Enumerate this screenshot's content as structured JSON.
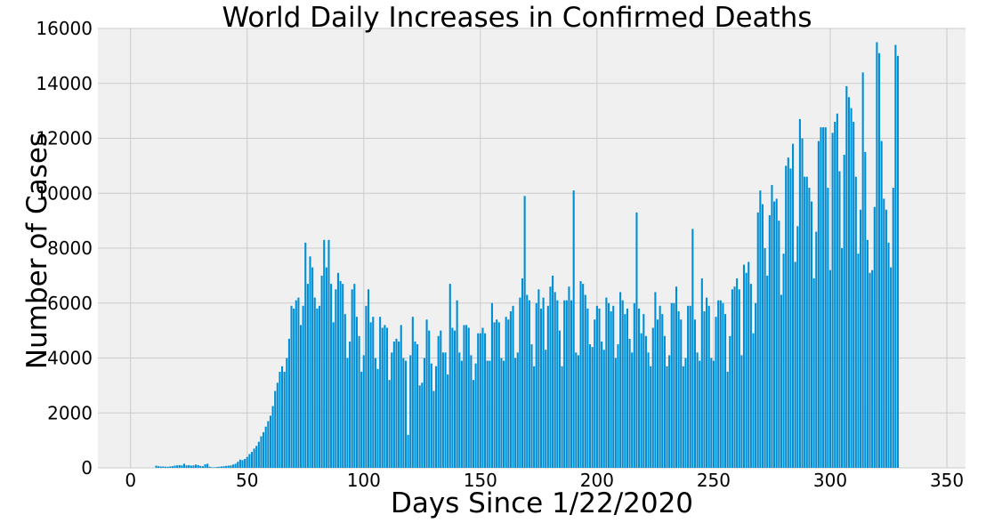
{
  "chart_data": {
    "type": "bar",
    "title": "World Daily Increases in Confirmed Deaths",
    "xlabel": "Days Since 1/22/2020",
    "ylabel": "Number of Cases",
    "xlim": [
      -14,
      358
    ],
    "ylim": [
      0,
      16000
    ],
    "xticks": [
      0,
      50,
      100,
      150,
      200,
      250,
      300,
      350
    ],
    "yticks": [
      0,
      2000,
      4000,
      6000,
      8000,
      10000,
      12000,
      14000,
      16000
    ],
    "grid": true,
    "bar_color": "#008fd5",
    "background_color": "#f0f0f0",
    "x_start": 0,
    "values": [
      0,
      0,
      0,
      0,
      0,
      0,
      0,
      0,
      0,
      0,
      0,
      80,
      60,
      50,
      50,
      40,
      40,
      50,
      60,
      80,
      90,
      100,
      90,
      150,
      90,
      100,
      80,
      90,
      120,
      100,
      70,
      60,
      130,
      150,
      40,
      20,
      20,
      30,
      40,
      50,
      60,
      70,
      80,
      90,
      120,
      150,
      220,
      300,
      280,
      320,
      400,
      500,
      580,
      700,
      800,
      950,
      1150,
      1300,
      1500,
      1700,
      1900,
      2250,
      2800,
      3100,
      3500,
      3700,
      3500,
      4000,
      4700,
      5900,
      5800,
      6100,
      6200,
      5200,
      5900,
      8200,
      6700,
      7700,
      7300,
      6200,
      5800,
      5900,
      7000,
      8300,
      7300,
      8300,
      6700,
      5300,
      6500,
      7100,
      6800,
      6700,
      5600,
      4000,
      4600,
      6500,
      6700,
      5500,
      4800,
      3500,
      4100,
      5900,
      6500,
      5300,
      5500,
      4000,
      3600,
      5500,
      5100,
      5200,
      5100,
      3200,
      4200,
      4600,
      4700,
      4600,
      5200,
      4000,
      3900,
      1200,
      4100,
      5500,
      4600,
      4500,
      3000,
      3100,
      4000,
      5400,
      5000,
      3800,
      2800,
      3700,
      4800,
      5000,
      4200,
      4200,
      3400,
      6700,
      5100,
      5000,
      6100,
      4200,
      3900,
      5200,
      5200,
      5100,
      4100,
      3200,
      3800,
      4900,
      4900,
      5100,
      4900,
      3900,
      3900,
      6000,
      5300,
      5400,
      5300,
      4000,
      3900,
      5500,
      5400,
      5700,
      5900,
      4000,
      4200,
      6200,
      6900,
      9900,
      6300,
      6100,
      4500,
      3700,
      6000,
      6500,
      5800,
      6200,
      4300,
      5900,
      6600,
      7000,
      6400,
      6100,
      5000,
      3700,
      6100,
      6100,
      6600,
      6100,
      10100,
      4200,
      4100,
      6800,
      6700,
      6300,
      5800,
      4500,
      4400,
      5400,
      5900,
      5800,
      4600,
      4300,
      6200,
      6000,
      5700,
      5900,
      4000,
      4500,
      6400,
      6100,
      5600,
      5800,
      4700,
      4200,
      6000,
      9300,
      5800,
      4900,
      5600,
      4800,
      4200,
      3700,
      5100,
      6400,
      5400,
      5900,
      5600,
      4800,
      3700,
      4100,
      6000,
      6000,
      6600,
      5700,
      5400,
      3700,
      4000,
      5900,
      5900,
      8700,
      5400,
      4200,
      3900,
      6900,
      5700,
      6200,
      5900,
      4000,
      3900,
      5500,
      6100,
      6100,
      6000,
      5600,
      3500,
      4800,
      6500,
      6600,
      6900,
      6500,
      4100,
      7400,
      7100,
      7500,
      6700,
      4900,
      6000,
      9300,
      10100,
      9600,
      8000,
      7000,
      9200,
      10300,
      9700,
      9800,
      9000,
      6300,
      7800,
      11000,
      11300,
      10900,
      11800,
      7500,
      8800,
      12700,
      12000,
      10600,
      10600,
      10200,
      9700,
      6900,
      8600,
      11900,
      12400,
      12400,
      12400,
      10200,
      7200,
      12200,
      12600,
      12900,
      10800,
      8000,
      11400,
      13900,
      13500,
      13100,
      12600,
      10600,
      7800,
      9400,
      14400,
      11500,
      8300,
      7100,
      7200,
      9500,
      15500,
      15100,
      11900,
      9800,
      9400,
      8200,
      7300,
      10200,
      15400,
      15000
    ]
  }
}
